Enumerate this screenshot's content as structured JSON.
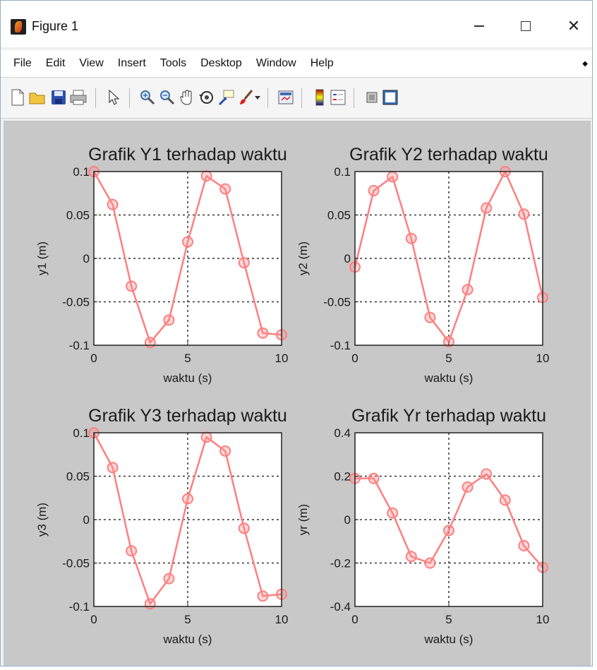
{
  "window": {
    "title": "Figure 1"
  },
  "menu": {
    "items": [
      {
        "id": "file",
        "label": "File"
      },
      {
        "id": "edit",
        "label": "Edit"
      },
      {
        "id": "view",
        "label": "View"
      },
      {
        "id": "insert",
        "label": "Insert"
      },
      {
        "id": "tools",
        "label": "Tools"
      },
      {
        "id": "desktop",
        "label": "Desktop"
      },
      {
        "id": "window",
        "label": "Window"
      },
      {
        "id": "help",
        "label": "Help"
      }
    ]
  },
  "toolbar": {
    "icons": [
      "new-figure-icon",
      "open-folder-icon",
      "save-icon",
      "print-icon",
      "select-pointer-icon",
      "zoom-in-icon",
      "zoom-out-icon",
      "pan-hand-icon",
      "rotate-3d-icon",
      "data-cursor-icon",
      "brush-icon",
      "link-plot-icon",
      "colorbar-icon",
      "legend-icon",
      "hide-plot-tools-icon",
      "show-plot-tools-icon"
    ]
  },
  "colors": {
    "series": "#ff7f7f",
    "figure_bg": "#c8c8c8",
    "axes_bg": "#ffffff"
  },
  "chart_data": [
    {
      "type": "line",
      "title": "Grafik Y1 terhadap waktu",
      "xlabel": "waktu (s)",
      "ylabel": "y1 (m)",
      "xlim": [
        0,
        10
      ],
      "ylim": [
        -0.1,
        0.1
      ],
      "xticks": [
        0,
        5,
        10
      ],
      "yticks": [
        -0.1,
        -0.05,
        0,
        0.05,
        0.1
      ],
      "xtick_labels": [
        "0",
        "5",
        "10"
      ],
      "ytick_labels": [
        "-0.1",
        "-0.05",
        "0",
        "0.05",
        "0.1"
      ],
      "grid": "dotted",
      "x": [
        0,
        1,
        2,
        3,
        4,
        5,
        6,
        7,
        8,
        9,
        10
      ],
      "y": [
        0.1,
        0.062,
        -0.032,
        -0.097,
        -0.071,
        0.019,
        0.095,
        0.08,
        -0.005,
        -0.086,
        -0.088
      ]
    },
    {
      "type": "line",
      "title": "Grafik Y2 terhadap waktu",
      "xlabel": "waktu (s)",
      "ylabel": "y2 (m)",
      "xlim": [
        0,
        10
      ],
      "ylim": [
        -0.1,
        0.1
      ],
      "xticks": [
        0,
        5,
        10
      ],
      "yticks": [
        -0.1,
        -0.05,
        0,
        0.05,
        0.1
      ],
      "xtick_labels": [
        "0",
        "5",
        "10"
      ],
      "ytick_labels": [
        "-0.1",
        "-0.05",
        "0",
        "0.05",
        "0.1"
      ],
      "grid": "dotted",
      "x": [
        0,
        1,
        2,
        3,
        4,
        5,
        6,
        7,
        8,
        9,
        10
      ],
      "y": [
        -0.01,
        0.078,
        0.094,
        0.023,
        -0.068,
        -0.096,
        -0.036,
        0.058,
        0.1,
        0.051,
        -0.045
      ]
    },
    {
      "type": "line",
      "title": "Grafik Y3 terhadap waktu",
      "xlabel": "waktu (s)",
      "ylabel": "y3 (m)",
      "xlim": [
        0,
        10
      ],
      "ylim": [
        -0.1,
        0.1
      ],
      "xticks": [
        0,
        5,
        10
      ],
      "yticks": [
        -0.1,
        -0.05,
        0,
        0.05,
        0.1
      ],
      "xtick_labels": [
        "0",
        "5",
        "10"
      ],
      "ytick_labels": [
        "-0.1",
        "-0.05",
        "0",
        "0.05",
        "0.1"
      ],
      "grid": "dotted",
      "x": [
        0,
        1,
        2,
        3,
        4,
        5,
        6,
        7,
        8,
        9,
        10
      ],
      "y": [
        0.1,
        0.06,
        -0.036,
        -0.097,
        -0.068,
        0.024,
        0.095,
        0.079,
        -0.01,
        -0.088,
        -0.086
      ]
    },
    {
      "type": "line",
      "title": "Grafik Yr terhadap waktu",
      "xlabel": "waktu (s)",
      "ylabel": "yr (m)",
      "xlim": [
        0,
        10
      ],
      "ylim": [
        -0.4,
        0.4
      ],
      "xticks": [
        0,
        5,
        10
      ],
      "yticks": [
        -0.4,
        -0.2,
        0,
        0.2,
        0.4
      ],
      "xtick_labels": [
        "0",
        "5",
        "10"
      ],
      "ytick_labels": [
        "-0.4",
        "-0.2",
        "0",
        "0.2",
        "0.4"
      ],
      "grid": "dotted",
      "x": [
        0,
        1,
        2,
        3,
        4,
        5,
        6,
        7,
        8,
        9,
        10
      ],
      "y": [
        0.19,
        0.19,
        0.03,
        -0.17,
        -0.2,
        -0.05,
        0.15,
        0.21,
        0.09,
        -0.12,
        -0.22
      ]
    }
  ]
}
